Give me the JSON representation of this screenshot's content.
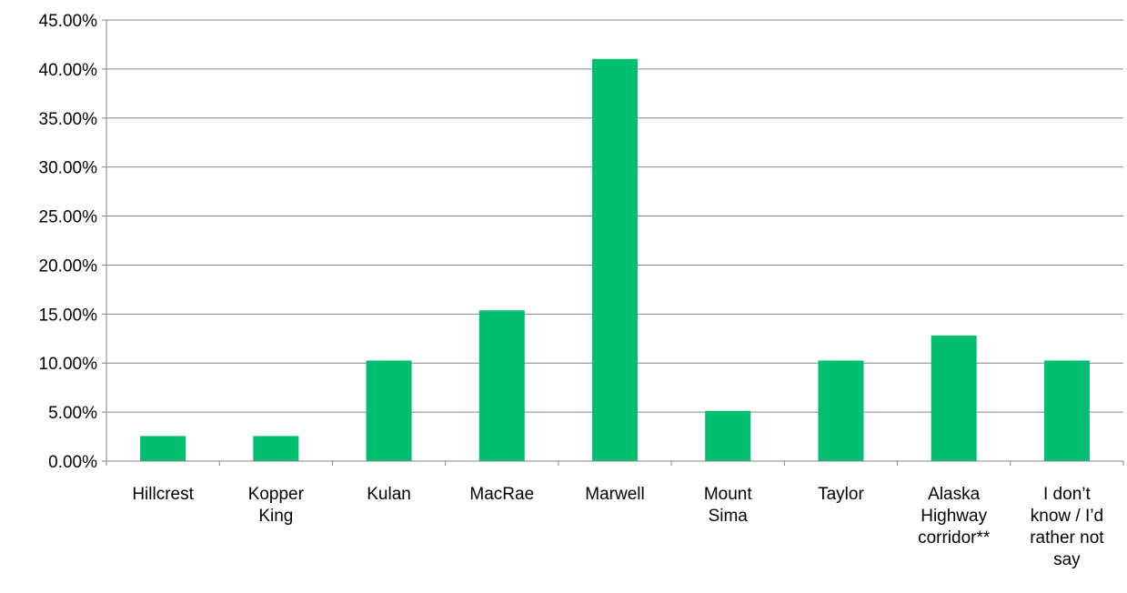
{
  "chart_data": {
    "type": "bar",
    "title": "",
    "xlabel": "",
    "ylabel": "",
    "categories": [
      [
        "Hillcrest"
      ],
      [
        "Kopper",
        "King"
      ],
      [
        "Kulan"
      ],
      [
        "MacRae"
      ],
      [
        "Marwell"
      ],
      [
        "Mount",
        "Sima"
      ],
      [
        "Taylor"
      ],
      [
        "Alaska",
        "Highway",
        "corridor**"
      ],
      [
        "I don’t",
        "know / I’d",
        "rather not",
        "say"
      ]
    ],
    "values": [
      2.56,
      2.56,
      10.26,
      15.38,
      41.03,
      5.13,
      10.26,
      12.82,
      10.26
    ],
    "ylim": [
      0,
      45
    ],
    "yticks": [
      "0.00%",
      "5.00%",
      "10.00%",
      "15.00%",
      "20.00%",
      "25.00%",
      "30.00%",
      "35.00%",
      "40.00%",
      "45.00%"
    ],
    "grid": true,
    "legend": "none",
    "bar_color": "#00BF6F"
  }
}
